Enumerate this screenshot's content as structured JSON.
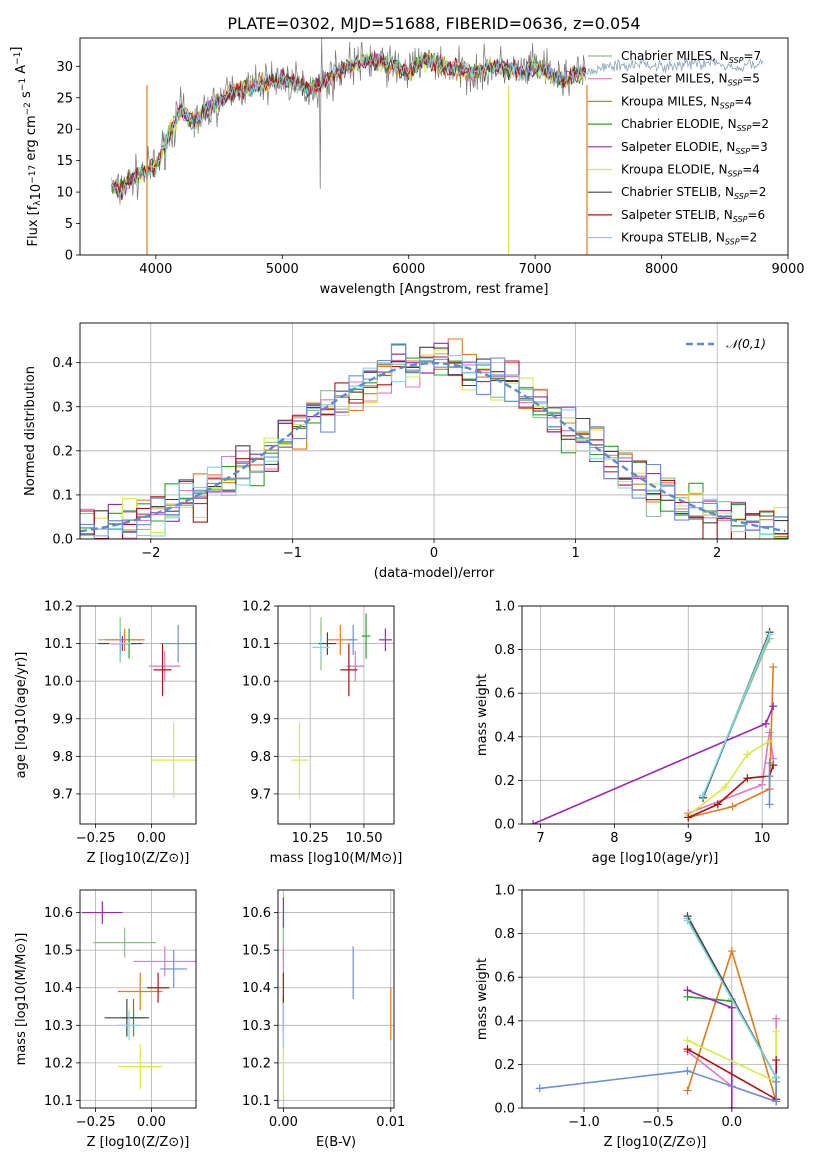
{
  "figure_title": "PLATE=0302, MJD=51688, FIBERID=0636, z=0.054",
  "series_colors": [
    "#8cbf8c",
    "#e377c2",
    "#e07b1e",
    "#2ca02c",
    "#9b27b0",
    "#d7ea4b",
    "#444444",
    "#b01010",
    "#7fd6e8"
  ],
  "legend_labels": [
    {
      "pre": "Chabrier MILES, N",
      "sub": "SSP",
      "post": "=7"
    },
    {
      "pre": "Salpeter MILES, N",
      "sub": "SSP",
      "post": "=5"
    },
    {
      "pre": "Kroupa MILES, N",
      "sub": "SSP",
      "post": "=4"
    },
    {
      "pre": "Chabrier ELODIE, N",
      "sub": "SSP",
      "post": "=2"
    },
    {
      "pre": "Salpeter ELODIE, N",
      "sub": "SSP",
      "post": "=3"
    },
    {
      "pre": "Kroupa ELODIE, N",
      "sub": "SSP",
      "post": "=4"
    },
    {
      "pre": "Chabrier STELIB, N",
      "sub": "SSP",
      "post": "=2"
    },
    {
      "pre": "Salpeter STELIB, N",
      "sub": "SSP",
      "post": "=6"
    },
    {
      "pre": "Kroupa STELIB, N",
      "sub": "SSP",
      "post": "=2"
    }
  ],
  "chart_data": [
    {
      "type": "line",
      "xlabel": "wavelength [Angstrom, rest frame]",
      "ylabel": "Flux [fλ10⁻¹⁷ erg cm⁻² s⁻¹ A⁻¹]",
      "xlim": [
        3400,
        9000
      ],
      "ylim": [
        0,
        34.5
      ],
      "xticks": [
        4000,
        5000,
        6000,
        7000,
        8000,
        9000
      ],
      "yticks": [
        0,
        5,
        10,
        15,
        20,
        25,
        30
      ],
      "spectrum_knots": [
        [
          3650,
          11
        ],
        [
          3700,
          10
        ],
        [
          3800,
          12
        ],
        [
          3900,
          13
        ],
        [
          4000,
          14
        ],
        [
          4100,
          19
        ],
        [
          4200,
          23
        ],
        [
          4300,
          21
        ],
        [
          4400,
          23
        ],
        [
          4600,
          26
        ],
        [
          4800,
          27
        ],
        [
          5000,
          28
        ],
        [
          5200,
          26.5
        ],
        [
          5300,
          27
        ],
        [
          5500,
          30
        ],
        [
          5700,
          31
        ],
        [
          5900,
          30
        ],
        [
          6000,
          29
        ],
        [
          6100,
          31
        ],
        [
          6300,
          30
        ],
        [
          6500,
          29
        ],
        [
          6700,
          30
        ],
        [
          6900,
          29
        ],
        [
          7000,
          30
        ],
        [
          7200,
          28
        ],
        [
          7400,
          29
        ]
      ],
      "observed_extension": [
        [
          7400,
          29
        ],
        [
          7600,
          30
        ],
        [
          7800,
          30.5
        ],
        [
          8000,
          30
        ],
        [
          8200,
          30.5
        ],
        [
          8400,
          30.5
        ],
        [
          8600,
          30
        ],
        [
          8800,
          30.5
        ]
      ],
      "notes": "ignored"
    },
    {
      "type": "histogram",
      "xlabel": "(data-model)/error",
      "ylabel": "Normed distribution",
      "xlim": [
        -2.5,
        2.5
      ],
      "ylim": [
        0,
        0.49
      ],
      "xticks": [
        -2,
        -1,
        0,
        1,
        2
      ],
      "yticks": [
        0.0,
        0.1,
        0.2,
        0.3,
        0.4
      ],
      "bin_width": 0.1,
      "reference_label": "𝒩(0,1)"
    },
    {
      "type": "scatter",
      "xlabel": "Z [log10(Z/Z⊙)]",
      "ylabel": "age  [log10(age/yr)]",
      "xlim": [
        -0.32,
        0.2
      ],
      "ylim": [
        9.62,
        10.2
      ],
      "xticks": [
        -0.25,
        0.0
      ],
      "xtick_labels": [
        "−0.25",
        "0.00"
      ],
      "yticks": [
        9.7,
        9.8,
        9.9,
        10.0,
        10.1,
        10.2
      ],
      "points": [
        {
          "x": -0.14,
          "y": 10.11,
          "dx": 0.1,
          "dy": 0.06,
          "c": 0
        },
        {
          "x": 0.06,
          "y": 10.04,
          "dx": 0.07,
          "dy": 0.04,
          "c": 1
        },
        {
          "x": -0.12,
          "y": 10.11,
          "dx": 0.09,
          "dy": 0.03,
          "c": 2
        },
        {
          "x": -0.1,
          "y": 10.1,
          "dx": 0.03,
          "dy": 0.04,
          "c": 3
        },
        {
          "x": -0.13,
          "y": 10.1,
          "dx": 0.05,
          "dy": 0.02,
          "c": 4
        },
        {
          "x": 0.1,
          "y": 9.79,
          "dx": 0.1,
          "dy": 0.1,
          "c": 5
        },
        {
          "x": -0.14,
          "y": 10.1,
          "dx": 0.1,
          "dy": 0.03,
          "c": 6
        },
        {
          "x": 0.05,
          "y": 10.03,
          "dx": 0.04,
          "dy": 0.07,
          "c": 7
        },
        {
          "x": -0.14,
          "y": 10.1,
          "dx": 0.05,
          "dy": 0.04,
          "c": 8
        },
        {
          "x": 0.12,
          "y": 10.1,
          "dx": 0.08,
          "dy": 0.05,
          "c": 9
        }
      ]
    },
    {
      "type": "scatter",
      "xlabel": "mass [log10(M/M⊙)]",
      "ylabel": "",
      "xlim": [
        10.1,
        10.64
      ],
      "ylim": [
        9.62,
        10.2
      ],
      "xticks": [
        10.25,
        10.5
      ],
      "xtick_labels": [
        "10.25",
        "10.50"
      ],
      "yticks": [
        9.7,
        9.8,
        9.9,
        10.0,
        10.1,
        10.2
      ],
      "points": [
        {
          "x": 10.3,
          "y": 10.1,
          "dx": 0.05,
          "dy": 0.07,
          "c": 0
        },
        {
          "x": 10.46,
          "y": 10.04,
          "dx": 0.04,
          "dy": 0.04,
          "c": 1
        },
        {
          "x": 10.39,
          "y": 10.11,
          "dx": 0.06,
          "dy": 0.04,
          "c": 2
        },
        {
          "x": 10.51,
          "y": 10.12,
          "dx": 0.02,
          "dy": 0.06,
          "c": 3
        },
        {
          "x": 10.6,
          "y": 10.11,
          "dx": 0.03,
          "dy": 0.03,
          "c": 4
        },
        {
          "x": 10.2,
          "y": 9.79,
          "dx": 0.04,
          "dy": 0.1,
          "c": 5
        },
        {
          "x": 10.33,
          "y": 10.1,
          "dx": 0.04,
          "dy": 0.03,
          "c": 6
        },
        {
          "x": 10.43,
          "y": 10.03,
          "dx": 0.04,
          "dy": 0.07,
          "c": 7
        },
        {
          "x": 10.3,
          "y": 10.09,
          "dx": 0.04,
          "dy": 0.03,
          "c": 8
        },
        {
          "x": 10.45,
          "y": 10.11,
          "dx": 0.02,
          "dy": 0.04,
          "c": 9
        }
      ]
    },
    {
      "type": "line",
      "xlabel": "age  [log10(age/yr)]",
      "ylabel": "mass weight",
      "xlim": [
        6.75,
        10.35
      ],
      "ylim": [
        0,
        1.0
      ],
      "xticks": [
        7,
        8,
        9,
        10
      ],
      "yticks": [
        0.0,
        0.2,
        0.4,
        0.6,
        0.8,
        1.0
      ],
      "series": [
        {
          "c": 0,
          "pts": [
            [
              9.2,
              0.13
            ],
            [
              10.1,
              0.85
            ]
          ]
        },
        {
          "c": 1,
          "pts": [
            [
              9.0,
              0.05
            ],
            [
              10.0,
              0.18
            ],
            [
              10.1,
              0.42
            ],
            [
              10.15,
              0.3
            ]
          ]
        },
        {
          "c": 2,
          "pts": [
            [
              9.0,
              0.03
            ],
            [
              9.6,
              0.08
            ],
            [
              10.1,
              0.16
            ],
            [
              10.15,
              0.72
            ]
          ]
        },
        {
          "c": 3,
          "pts": [
            [
              9.2,
              0.12
            ],
            [
              10.1,
              0.88
            ]
          ]
        },
        {
          "c": 4,
          "pts": [
            [
              6.9,
              0.0
            ],
            [
              10.05,
              0.46
            ],
            [
              10.15,
              0.54
            ]
          ]
        },
        {
          "c": 5,
          "pts": [
            [
              9.0,
              0.04
            ],
            [
              9.5,
              0.17
            ],
            [
              9.8,
              0.32
            ],
            [
              10.1,
              0.38
            ]
          ]
        },
        {
          "c": 6,
          "pts": [
            [
              9.2,
              0.12
            ],
            [
              10.1,
              0.88
            ]
          ]
        },
        {
          "c": 7,
          "pts": [
            [
              9.0,
              0.03
            ],
            [
              9.4,
              0.09
            ],
            [
              9.8,
              0.21
            ],
            [
              10.1,
              0.22
            ],
            [
              10.15,
              0.27
            ]
          ]
        },
        {
          "c": 8,
          "pts": [
            [
              9.2,
              0.13
            ],
            [
              10.1,
              0.87
            ]
          ]
        },
        {
          "c": 9,
          "pts": [
            [
              10.1,
              0.28
            ],
            [
              10.1,
              0.09
            ],
            [
              10.1,
              0.22
            ]
          ]
        }
      ]
    },
    {
      "type": "scatter",
      "xlabel": "Z [log10(Z/Z⊙)]",
      "ylabel": "mass [log10(M/M⊙)]",
      "xlim": [
        -0.32,
        0.2
      ],
      "ylim": [
        10.08,
        10.66
      ],
      "xticks": [
        -0.25,
        0.0
      ],
      "xtick_labels": [
        "−0.25",
        "0.00"
      ],
      "yticks": [
        10.1,
        10.2,
        10.3,
        10.4,
        10.5,
        10.6
      ],
      "points": [
        {
          "x": -0.12,
          "y": 10.52,
          "dx": 0.14,
          "dy": 0.04,
          "c": 0
        },
        {
          "x": 0.06,
          "y": 10.47,
          "dx": 0.14,
          "dy": 0.04,
          "c": 1
        },
        {
          "x": -0.05,
          "y": 10.39,
          "dx": 0.1,
          "dy": 0.05,
          "c": 2
        },
        {
          "x": -0.08,
          "y": 10.32,
          "dx": 0.05,
          "dy": 0.05,
          "c": 3
        },
        {
          "x": -0.22,
          "y": 10.6,
          "dx": 0.09,
          "dy": 0.03,
          "c": 4
        },
        {
          "x": -0.05,
          "y": 10.19,
          "dx": 0.1,
          "dy": 0.06,
          "c": 5
        },
        {
          "x": -0.11,
          "y": 10.32,
          "dx": 0.1,
          "dy": 0.05,
          "c": 6
        },
        {
          "x": 0.03,
          "y": 10.4,
          "dx": 0.05,
          "dy": 0.04,
          "c": 7
        },
        {
          "x": -0.1,
          "y": 10.3,
          "dx": 0.05,
          "dy": 0.04,
          "c": 8
        },
        {
          "x": 0.1,
          "y": 10.45,
          "dx": 0.06,
          "dy": 0.05,
          "c": 9
        }
      ]
    },
    {
      "type": "scatter",
      "xlabel": "E(B-V)",
      "ylabel": "",
      "xlim": [
        -0.0005,
        0.0103
      ],
      "ylim": [
        10.08,
        10.66
      ],
      "xticks": [
        0.0,
        0.01
      ],
      "xtick_labels": [
        "0.00",
        "0.01"
      ],
      "yticks": [
        10.1,
        10.2,
        10.3,
        10.4,
        10.5,
        10.6
      ],
      "points": [
        {
          "x": 0.0,
          "y": 10.52,
          "dx": 0,
          "dy": 0.05,
          "c": 0
        },
        {
          "x": 0.0,
          "y": 10.47,
          "dx": 0,
          "dy": 0.04,
          "c": 1
        },
        {
          "x": 0.01,
          "y": 10.33,
          "dx": 0,
          "dy": 0.07,
          "c": 2
        },
        {
          "x": 0.0,
          "y": 10.6,
          "dx": 0,
          "dy": 0.04,
          "c": 4
        },
        {
          "x": 0.0,
          "y": 10.18,
          "dx": 0,
          "dy": 0.07,
          "c": 5
        },
        {
          "x": 0.0,
          "y": 10.33,
          "dx": 0,
          "dy": 0.05,
          "c": 6
        },
        {
          "x": 0.0,
          "y": 10.4,
          "dx": 0,
          "dy": 0.04,
          "c": 7
        },
        {
          "x": 0.0,
          "y": 10.3,
          "dx": 0,
          "dy": 0.06,
          "c": 8
        },
        {
          "x": 0.0065,
          "y": 10.44,
          "dx": 0,
          "dy": 0.07,
          "c": 9
        }
      ]
    },
    {
      "type": "line",
      "xlabel": "Z [log10(Z/Z⊙)]",
      "ylabel": "mass weight",
      "xlim": [
        -1.42,
        0.38
      ],
      "ylim": [
        0,
        1.0
      ],
      "xticks": [
        -1.0,
        -0.5,
        0.0
      ],
      "xtick_labels": [
        "−1.0",
        "−0.5",
        "0.0"
      ],
      "yticks": [
        0.0,
        0.2,
        0.4,
        0.6,
        0.8,
        1.0
      ],
      "series": [
        {
          "c": 0,
          "pts": [
            [
              -0.3,
              0.87
            ],
            [
              0.0,
              0.5
            ],
            [
              0.3,
              0.14
            ]
          ]
        },
        {
          "c": 1,
          "pts": [
            [
              -0.3,
              0.26
            ],
            [
              0.0,
              0.1
            ],
            [
              0.3,
              0.03
            ],
            [
              0.3,
              0.41
            ]
          ]
        },
        {
          "c": 2,
          "pts": [
            [
              -0.3,
              0.08
            ],
            [
              0.0,
              0.72
            ],
            [
              0.3,
              0.03
            ]
          ]
        },
        {
          "c": 3,
          "pts": [
            [
              -0.3,
              0.51
            ],
            [
              0.0,
              0.49
            ]
          ]
        },
        {
          "c": 4,
          "pts": [
            [
              -0.3,
              0.54
            ],
            [
              0.0,
              0.46
            ],
            [
              0.0,
              0.0
            ]
          ]
        },
        {
          "c": 5,
          "pts": [
            [
              -0.3,
              0.31
            ],
            [
              0.3,
              0.12
            ],
            [
              0.3,
              0.35
            ]
          ]
        },
        {
          "c": 6,
          "pts": [
            [
              -0.3,
              0.88
            ],
            [
              0.3,
              0.14
            ]
          ]
        },
        {
          "c": 7,
          "pts": [
            [
              -0.3,
              0.27
            ],
            [
              0.3,
              0.04
            ],
            [
              0.3,
              0.22
            ]
          ]
        },
        {
          "c": 8,
          "pts": [
            [
              -0.3,
              0.86
            ],
            [
              0.3,
              0.14
            ]
          ]
        },
        {
          "c": 9,
          "pts": [
            [
              -1.3,
              0.09
            ],
            [
              -0.3,
              0.17
            ],
            [
              0.3,
              0.03
            ],
            [
              0.3,
              0.12
            ]
          ]
        }
      ]
    }
  ]
}
